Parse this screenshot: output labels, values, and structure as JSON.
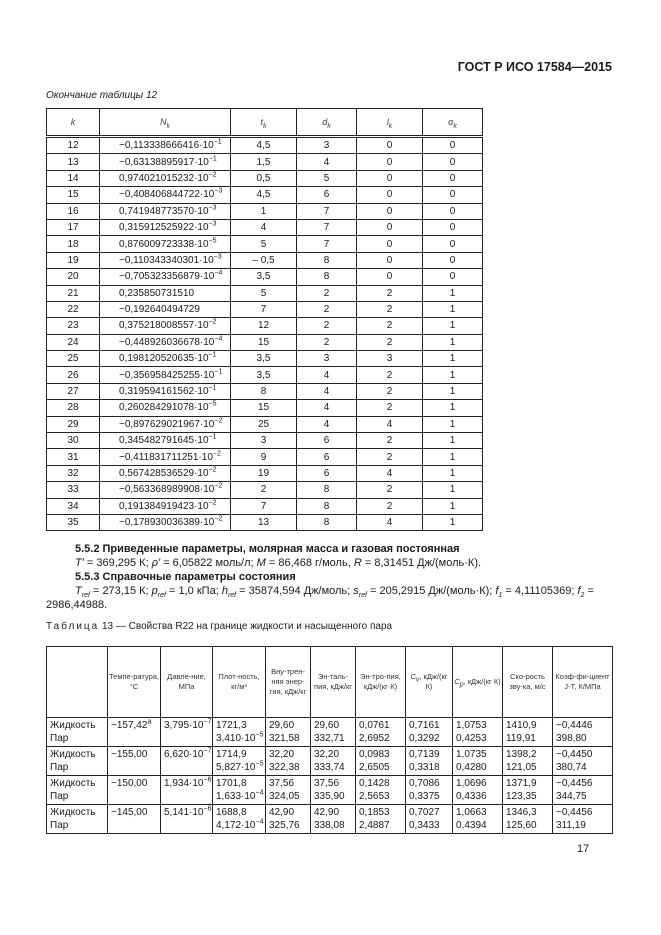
{
  "header": {
    "doc_id": "ГОСТ Р ИСО 17584—2015"
  },
  "table12": {
    "continuation": "Окончание таблицы 12",
    "columns": [
      {
        "main": "k",
        "sub": ""
      },
      {
        "main": "N",
        "sub": "k"
      },
      {
        "main": "t",
        "sub": "k"
      },
      {
        "main": "d",
        "sub": "k"
      },
      {
        "main": "l",
        "sub": "k"
      },
      {
        "main": "α",
        "sub": "k"
      }
    ],
    "rows": [
      [
        "12",
        {
          "m": "−0,113338666416·10",
          "e": "−1"
        },
        "4,5",
        "3",
        "0",
        "0"
      ],
      [
        "13",
        {
          "m": "−0,63138895917·10",
          "e": "−1"
        },
        "1,5",
        "4",
        "0",
        "0"
      ],
      [
        "14",
        {
          "m": "0,974021015232·10",
          "e": "−2"
        },
        "0,5",
        "5",
        "0",
        "0"
      ],
      [
        "15",
        {
          "m": "−0,408406844722·10",
          "e": "−3"
        },
        "4,5",
        "6",
        "0",
        "0"
      ],
      [
        "16",
        {
          "m": "0,741948773570·10",
          "e": "−3"
        },
        "1",
        "7",
        "0",
        "0"
      ],
      [
        "17",
        {
          "m": "0,315912525922·10",
          "e": "−3"
        },
        "4",
        "7",
        "0",
        "0"
      ],
      [
        "18",
        {
          "m": "0,876009723338·10",
          "e": "−5"
        },
        "5",
        "7",
        "0",
        "0"
      ],
      [
        "19",
        {
          "m": "−0,110343340301·10",
          "e": "−3"
        },
        "– 0,5",
        "8",
        "0",
        "0"
      ],
      [
        "20",
        {
          "m": "−0,705323356879·10",
          "e": "−4"
        },
        "3,5",
        "8",
        "0",
        "0"
      ],
      [
        "21",
        {
          "m": "0,235850731510",
          "e": ""
        },
        "5",
        "2",
        "2",
        "1"
      ],
      [
        "22",
        {
          "m": "−0,192640494729",
          "e": ""
        },
        "7",
        "2",
        "2",
        "1"
      ],
      [
        "23",
        {
          "m": "0,375218008557·10",
          "e": "−2"
        },
        "12",
        "2",
        "2",
        "1"
      ],
      [
        "24",
        {
          "m": "−0,448926036678·10",
          "e": "−4"
        },
        "15",
        "2",
        "2",
        "1"
      ],
      [
        "25",
        {
          "m": "0,198120520635·10",
          "e": "−1"
        },
        "3,5",
        "3",
        "3",
        "1"
      ],
      [
        "26",
        {
          "m": "−0,356958425255·10",
          "e": "−1"
        },
        "3,5",
        "4",
        "2",
        "1"
      ],
      [
        "27",
        {
          "m": "0,319594161562·10",
          "e": "−1"
        },
        "8",
        "4",
        "2",
        "1"
      ],
      [
        "28",
        {
          "m": "0,260284291078·10",
          "e": "−5"
        },
        "15",
        "4",
        "2",
        "1"
      ],
      [
        "29",
        {
          "m": "−0,897629021967·10",
          "e": "−2"
        },
        "25",
        "4",
        "4",
        "1"
      ],
      [
        "30",
        {
          "m": "0,345482791645·10",
          "e": "−1"
        },
        "3",
        "6",
        "2",
        "1"
      ],
      [
        "31",
        {
          "m": "−0,411831711251·10",
          "e": "−2"
        },
        "9",
        "6",
        "2",
        "1"
      ],
      [
        "32",
        {
          "m": "0,567428536529·10",
          "e": "−2"
        },
        "19",
        "6",
        "4",
        "1"
      ],
      [
        "33",
        {
          "m": "−0,563368989908·10",
          "e": "−2"
        },
        "2",
        "8",
        "2",
        "1"
      ],
      [
        "34",
        {
          "m": "0,191384919423·10",
          "e": "−2"
        },
        "7",
        "8",
        "2",
        "1"
      ],
      [
        "35",
        {
          "m": "−0,178930036389·10",
          "e": "−2"
        },
        "13",
        "8",
        "4",
        "1"
      ]
    ]
  },
  "section_552": {
    "title": "5.5.2 Приведенные параметры, молярная масса и газовая постоянная",
    "text": "T' = 369,295 К; ρ' = 6,05822 моль/л; M = 86,468 г/моль, R = 8,31451 Дж/(моль·К)."
  },
  "section_553": {
    "title": "5.5.3 Справочные параметры состояния",
    "text": "Tref = 273,15 К; pref = 1,0 кПа; href = 35874,594 Дж/моль; sref = 205,2915 Дж/(моль·К); f1 = 4,11105369; f2 = 2986,44988."
  },
  "table13": {
    "caption_prefix": "Таблица",
    "caption": "13 — Свойства R22 на границе жидкости и насыщенного пара",
    "columns": [
      "",
      "Темпе-ратура, °C",
      "Давле-ние, МПа",
      "Плот-ность, кг/м³",
      "Вну-трен-няя энер-гия, кДж/кг",
      "Эн-таль-пия, кДж/кг",
      "Эн-тро-пия, кДж/(кг·К)",
      "Cv, кДж/(кг К)",
      "Cp, кДж/(кг К)",
      "Ско-рость зву-ка, м/с",
      "Коэф-фи-циент J-T, К/МПа"
    ],
    "rows": [
      {
        "phases": [
          "Жидкость",
          "Пар"
        ],
        "temp": {
          "m": "−157,42",
          "e": "a"
        },
        "pressure": {
          "m": "3,795·10",
          "e": "−7"
        },
        "density": [
          "1721,3",
          {
            "m": "3,410·10",
            "e": "−5"
          }
        ],
        "u": [
          "29,60",
          "321,58"
        ],
        "h": [
          "29,60",
          "332,71"
        ],
        "s": [
          "0,0761",
          "2,6952"
        ],
        "cv": [
          "0,7161",
          "0,3292"
        ],
        "cp": [
          "1,0753",
          "0,4253"
        ],
        "w": [
          "1410,9",
          "119,91"
        ],
        "jt": [
          "−0,4446",
          "398,80"
        ]
      },
      {
        "phases": [
          "Жидкость",
          "Пар"
        ],
        "temp": {
          "m": "−155,00",
          "e": ""
        },
        "pressure": {
          "m": "6,620·10",
          "e": "−7"
        },
        "density": [
          "1714,9",
          {
            "m": "5,827·10",
            "e": "−5"
          }
        ],
        "u": [
          "32,20",
          "322,38"
        ],
        "h": [
          "32,20",
          "333,74"
        ],
        "s": [
          "0,0983",
          "2,6505"
        ],
        "cv": [
          "0,7139",
          "0,3318"
        ],
        "cp": [
          "1,0735",
          "0,4280"
        ],
        "w": [
          "1398,2",
          "121,05"
        ],
        "jt": [
          "−0,4450",
          "380,74"
        ]
      },
      {
        "phases": [
          "Жидкость",
          "Пар"
        ],
        "temp": {
          "m": "−150,00",
          "e": ""
        },
        "pressure": {
          "m": "1,934·10",
          "e": "−6"
        },
        "density": [
          "1701,8",
          {
            "m": "1,633·10",
            "e": "−4"
          }
        ],
        "u": [
          "37,56",
          "324,05"
        ],
        "h": [
          "37,56",
          "335,90"
        ],
        "s": [
          "0,1428",
          "2,5653"
        ],
        "cv": [
          "0,7086",
          "0,3375"
        ],
        "cp": [
          "1,0696",
          "0,4336"
        ],
        "w": [
          "1371,9",
          "123,35"
        ],
        "jt": [
          "−0,4456",
          "344,75"
        ]
      },
      {
        "phases": [
          "Жидкость",
          "Пар"
        ],
        "temp": {
          "m": "−145,00",
          "e": ""
        },
        "pressure": {
          "m": "5,141·10",
          "e": "−6"
        },
        "density": [
          "1688,8",
          {
            "m": "4,172·10",
            "e": "−4"
          }
        ],
        "u": [
          "42,90",
          "325,76"
        ],
        "h": [
          "42,90",
          "338,08"
        ],
        "s": [
          "0,1853",
          "2,4887"
        ],
        "cv": [
          "0,7027",
          "0,3433"
        ],
        "cp": [
          "1,0663",
          "0,4394"
        ],
        "w": [
          "1346,3",
          "125,60"
        ],
        "jt": [
          "−0,4456",
          "311,19"
        ]
      }
    ]
  },
  "footer": {
    "page_number": "17"
  }
}
